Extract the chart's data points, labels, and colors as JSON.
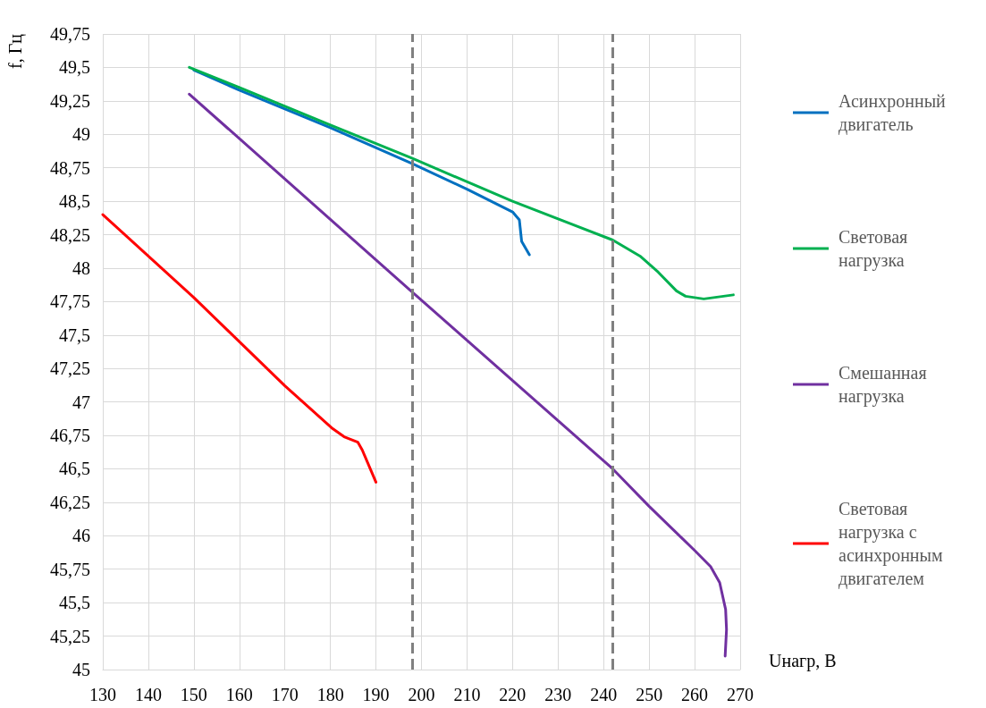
{
  "chart_data": {
    "type": "line",
    "xlabel": "Uнагр, В",
    "ylabel": "f, Гц",
    "xlim": [
      130,
      270
    ],
    "xticks": [
      130,
      140,
      150,
      160,
      170,
      180,
      190,
      200,
      210,
      220,
      230,
      240,
      250,
      260,
      270
    ],
    "ylim": [
      45,
      49.75
    ],
    "yticks": [
      45,
      {
        "value": 45.25,
        "label": "45,25"
      },
      {
        "value": 45.5,
        "label": "45,5"
      },
      {
        "value": 45.75,
        "label": "45,75"
      },
      46,
      {
        "value": 46.25,
        "label": "46,25"
      },
      {
        "value": 46.5,
        "label": "46,5"
      },
      {
        "value": 46.75,
        "label": "46,75"
      },
      47,
      {
        "value": 47.25,
        "label": "47,25"
      },
      {
        "value": 47.5,
        "label": "47,5"
      },
      {
        "value": 47.75,
        "label": "47,75"
      },
      48,
      {
        "value": 48.25,
        "label": "48,25"
      },
      {
        "value": 48.5,
        "label": "48,5"
      },
      {
        "value": 48.75,
        "label": "48,75"
      },
      49,
      {
        "value": 49.25,
        "label": "49,25"
      },
      {
        "value": 49.5,
        "label": "49,5"
      },
      {
        "value": 49.75,
        "label": "49,75"
      }
    ],
    "grid": true,
    "legend": "right",
    "marker": "none",
    "line_style": "solid",
    "series": [
      {
        "name": "Асинхронный двигатель",
        "color": "#0070c0",
        "x": [
          150,
          160,
          180,
          198,
          210,
          220,
          221.5,
          222,
          223.7
        ],
        "values": [
          49.48,
          49.33,
          49.05,
          48.78,
          48.59,
          48.42,
          48.36,
          48.2,
          48.1
        ]
      },
      {
        "name": "Световая нагрузка",
        "color": "#00b050",
        "x": [
          149,
          160,
          180,
          198,
          220,
          242,
          248,
          252,
          256,
          258,
          262,
          268.5
        ],
        "values": [
          49.5,
          49.35,
          49.07,
          48.82,
          48.5,
          48.21,
          48.09,
          47.97,
          47.83,
          47.79,
          47.77,
          47.8
        ]
      },
      {
        "name": "Смешанная нагрузка",
        "color": "#7030a0",
        "x": [
          149,
          198,
          242,
          250,
          260,
          263.5,
          265.5,
          266.8,
          267,
          266.7
        ],
        "values": [
          49.3,
          47.82,
          46.5,
          46.22,
          45.89,
          45.77,
          45.65,
          45.45,
          45.3,
          45.1
        ]
      },
      {
        "name": "Световая нагрузка с асинхронным двигателем",
        "color": "#ff0000",
        "x": [
          130,
          150,
          170,
          180.5,
          183,
          186,
          187,
          190
        ],
        "values": [
          48.4,
          47.78,
          47.12,
          46.8,
          46.74,
          46.7,
          46.64,
          46.4
        ]
      }
    ],
    "ref_lines": [
      {
        "axis": "x",
        "value": 198,
        "color": "#808080",
        "line_style": "dashed"
      },
      {
        "axis": "x",
        "value": 242,
        "color": "#808080",
        "line_style": "dashed"
      }
    ]
  }
}
